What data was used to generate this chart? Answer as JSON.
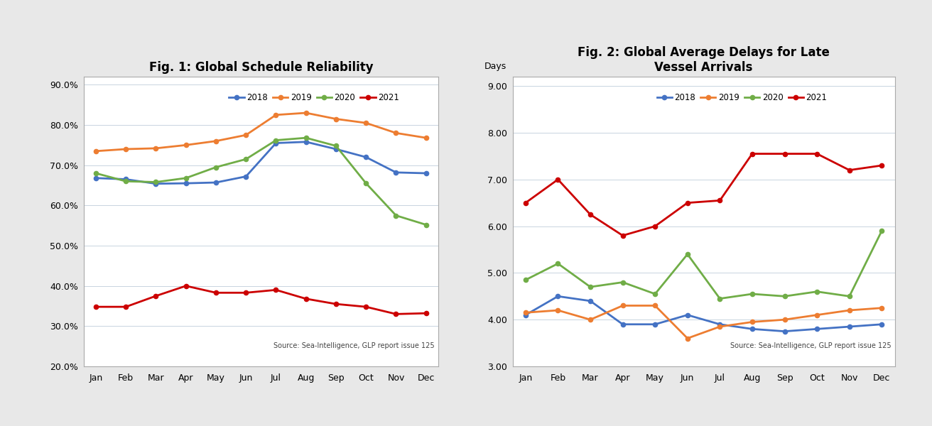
{
  "months": [
    "Jan",
    "Feb",
    "Mar",
    "Apr",
    "May",
    "Jun",
    "Jul",
    "Aug",
    "Sep",
    "Oct",
    "Nov",
    "Dec"
  ],
  "fig1_title": "Fig. 1: Global Schedule Reliability",
  "fig1_ylim": [
    0.2,
    0.92
  ],
  "fig1_yticks": [
    0.2,
    0.3,
    0.4,
    0.5,
    0.6,
    0.7,
    0.8,
    0.9
  ],
  "fig1_source": "Source: Sea-Intelligence, GLP report issue 125",
  "fig1_2018": [
    0.668,
    0.665,
    0.654,
    0.655,
    0.657,
    0.672,
    0.755,
    0.758,
    0.74,
    0.72,
    0.682,
    0.68
  ],
  "fig1_2019": [
    0.735,
    0.74,
    0.742,
    0.75,
    0.76,
    0.775,
    0.825,
    0.83,
    0.815,
    0.805,
    0.78,
    0.768
  ],
  "fig1_2020": [
    0.68,
    0.66,
    0.658,
    0.668,
    0.695,
    0.715,
    0.762,
    0.768,
    0.748,
    0.655,
    0.575,
    0.552
  ],
  "fig1_2021": [
    0.348,
    0.348,
    0.375,
    0.4,
    0.383,
    0.383,
    0.39,
    0.368,
    0.355,
    0.348,
    0.33,
    0.332
  ],
  "fig2_title": "Fig. 2: Global Average Delays for Late\nVessel Arrivals",
  "fig2_ylabel": "Days",
  "fig2_ylim": [
    3.0,
    9.2
  ],
  "fig2_yticks": [
    3.0,
    4.0,
    5.0,
    6.0,
    7.0,
    8.0,
    9.0
  ],
  "fig2_source": "Source: Sea-Intelligence, GLP report issue 125",
  "fig2_2018": [
    4.1,
    4.5,
    4.4,
    3.9,
    3.9,
    4.1,
    3.9,
    3.8,
    3.75,
    3.8,
    3.85,
    3.9
  ],
  "fig2_2019": [
    4.15,
    4.2,
    4.0,
    4.3,
    4.3,
    3.6,
    3.85,
    3.95,
    4.0,
    4.1,
    4.2,
    4.25
  ],
  "fig2_2020": [
    4.85,
    5.2,
    4.7,
    4.8,
    4.55,
    5.4,
    4.45,
    4.55,
    4.5,
    4.6,
    4.5,
    5.9
  ],
  "fig2_2021": [
    6.5,
    7.0,
    6.25,
    5.8,
    6.0,
    6.5,
    6.55,
    7.55,
    7.55,
    7.55,
    7.2,
    7.3
  ],
  "color_2018": "#4472C4",
  "color_2019": "#ED7D31",
  "color_2020": "#70AD47",
  "color_2021": "#CC0000",
  "outer_bg": "#E8E8E8",
  "chart_bg": "#FFFFFF",
  "grid_color": "#C8D4E0",
  "border_color": "#AAAAAA"
}
